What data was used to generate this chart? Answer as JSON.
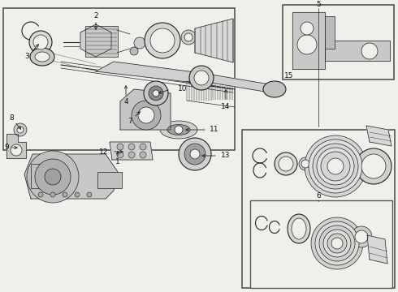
{
  "bg_color": "#f0f0eb",
  "line_color": "#222222",
  "box_bg": "#f0f0eb",
  "box_line": "#555555",
  "parts_bg": "#e8e8e3"
}
